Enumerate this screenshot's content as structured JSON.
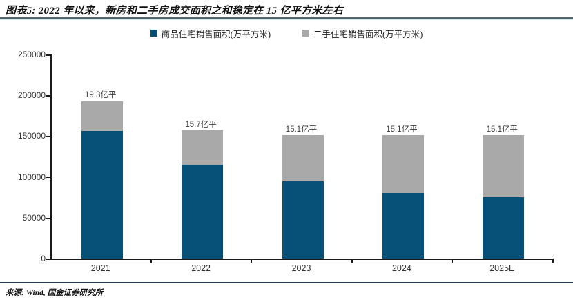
{
  "header": {
    "title": "图表5: 2022 年以来，新房和二手房成交面积之和稳定在 15 亿平方米左右"
  },
  "footer": {
    "source": "来源: Wind, 国金证券研究所"
  },
  "colors": {
    "primary_blue": "#075178",
    "secondary_gray": "#a9a9a9",
    "axis": "#1a1a1a"
  },
  "chart_data": {
    "type": "bar",
    "stacked": true,
    "categories": [
      "2021",
      "2022",
      "2023",
      "2024",
      "2025E"
    ],
    "series": [
      {
        "name": "商品住宅销售面积(万平方米)",
        "color": "#075178",
        "values": [
          156500,
          114600,
          94800,
          80300,
          75000
        ]
      },
      {
        "name": "二手住宅销售面积(万平方米)",
        "color": "#a9a9a9",
        "values": [
          36500,
          42400,
          56200,
          70700,
          76000
        ]
      }
    ],
    "total_labels": [
      "19.3亿平",
      "15.7亿平",
      "15.1亿平",
      "15.1亿平",
      "15.1亿平"
    ],
    "title": "2022 年以来，新房和二手房成交面积之和稳定在 15 亿平方米左右",
    "xlabel": "",
    "ylabel": "",
    "ylim": [
      0,
      250000
    ],
    "ytick_step": 50000,
    "grid": false,
    "legend_position": "top-center"
  }
}
